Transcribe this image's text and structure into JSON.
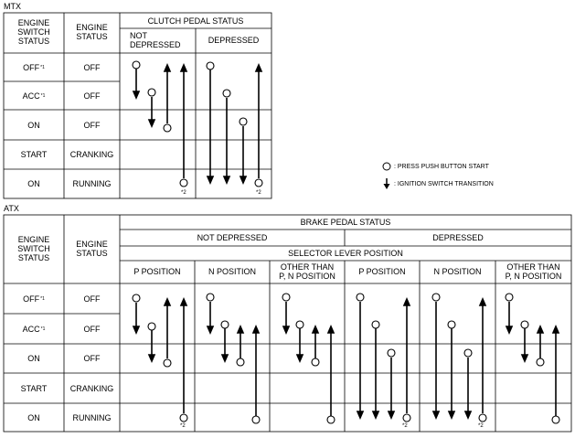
{
  "mtx": {
    "title": "MTX",
    "header_engine_switch": "ENGINE\nSWITCH\nSTATUS",
    "header_engine_status": "ENGINE\nSTATUS",
    "header_group": "CLUTCH PEDAL STATUS",
    "col_not_depressed": "NOT\nDEPRESSED",
    "col_depressed": "DEPRESSED",
    "rows": [
      {
        "switch": "OFF",
        "ref": "*1",
        "engine": "OFF"
      },
      {
        "switch": "ACC",
        "ref": "*1",
        "engine": "OFF"
      },
      {
        "switch": "ON",
        "ref": "",
        "engine": "OFF"
      },
      {
        "switch": "START",
        "ref": "",
        "engine": "CRANKING"
      },
      {
        "switch": "ON",
        "ref": "",
        "engine": "RUNNING"
      }
    ],
    "note_not_depressed": "*2",
    "note_depressed": "*2"
  },
  "legend": {
    "circle": ": PRESS PUSH BUTTON START",
    "arrow": ": IGNITION SWITCH TRANSITION"
  },
  "atx": {
    "title": "ATX",
    "header_engine_switch": "ENGINE\nSWITCH\nSTATUS",
    "header_engine_status": "ENGINE\nSTATUS",
    "header_group": "BRAKE PEDAL STATUS",
    "col_not_depressed": "NOT DEPRESSED",
    "col_depressed": "DEPRESSED",
    "selector_header": "SELECTOR LEVER POSITION",
    "pos_p": "P POSITION",
    "pos_n": "N POSITION",
    "pos_other": "OTHER THAN\nP, N POSITION",
    "rows": [
      {
        "switch": "OFF",
        "ref": "*1",
        "engine": "OFF"
      },
      {
        "switch": "ACC",
        "ref": "*1",
        "engine": "OFF"
      },
      {
        "switch": "ON",
        "ref": "",
        "engine": "OFF"
      },
      {
        "switch": "START",
        "ref": "",
        "engine": "CRANKING"
      },
      {
        "switch": "ON",
        "ref": "",
        "engine": "RUNNING"
      }
    ],
    "note_nd_p": "*2",
    "note_d_p": "*2",
    "note_d_n": "*2"
  }
}
